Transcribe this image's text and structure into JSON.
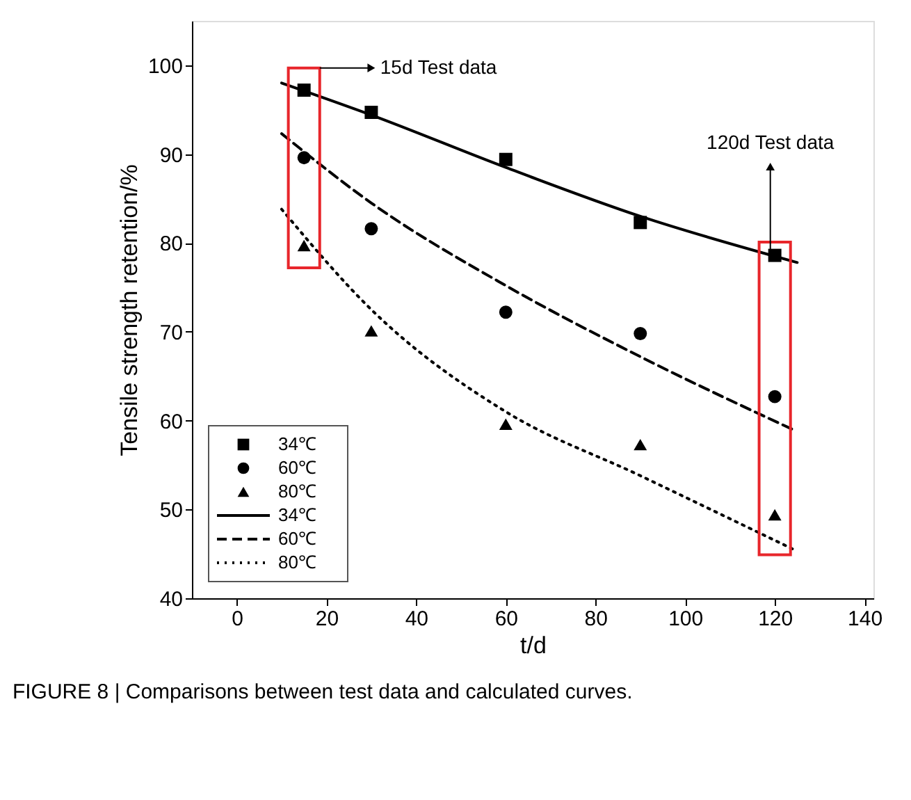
{
  "chart_data": {
    "type": "scatter",
    "xlabel": "t/d",
    "ylabel": "Tensile strength retention/%",
    "xlim": [
      -10,
      142
    ],
    "ylim": [
      40,
      105
    ],
    "xticks": [
      0,
      20,
      40,
      60,
      80,
      100,
      120,
      140
    ],
    "yticks": [
      40,
      50,
      60,
      70,
      80,
      90,
      100
    ],
    "grid": false,
    "legend": "bottom left",
    "series": [
      {
        "name": "34℃",
        "marker": "square",
        "color": "#000000",
        "x": [
          15,
          30,
          60,
          90,
          120
        ],
        "values": [
          97.2,
          94.7,
          89.4,
          82.3,
          78.6
        ]
      },
      {
        "name": "60℃",
        "marker": "circle",
        "color": "#000000",
        "x": [
          15,
          30,
          60,
          90,
          120
        ],
        "values": [
          89.6,
          81.6,
          72.2,
          69.8,
          62.7
        ]
      },
      {
        "name": "80℃",
        "marker": "triangle",
        "color": "#000000",
        "x": [
          15,
          30,
          60,
          90,
          120
        ],
        "values": [
          79.7,
          70.1,
          59.6,
          57.3,
          49.4
        ]
      },
      {
        "name": "34℃",
        "type": "line",
        "line_style": "solid",
        "color": "#000000",
        "x": [
          10,
          30,
          60,
          90,
          125
        ],
        "values": [
          98,
          94.4,
          88.5,
          83,
          77.8
        ]
      },
      {
        "name": "60℃",
        "type": "line",
        "line_style": "dashed",
        "color": "#000000",
        "x": [
          10,
          30,
          60,
          90,
          124
        ],
        "values": [
          92.3,
          84.5,
          75.2,
          67.2,
          59
        ]
      },
      {
        "name": "80℃",
        "type": "line",
        "line_style": "dotted",
        "color": "#000000",
        "x": [
          10,
          30,
          60,
          90,
          125
        ],
        "values": [
          83.8,
          72.5,
          61,
          53.8,
          45.3
        ]
      }
    ],
    "annotations": [
      "15d Test data",
      {
        "text": "120d Test data",
        "x": 120,
        "y": 78.6
      },
      "FIGURE 8 | Comparisons between test data and calculated curves."
    ]
  }
}
